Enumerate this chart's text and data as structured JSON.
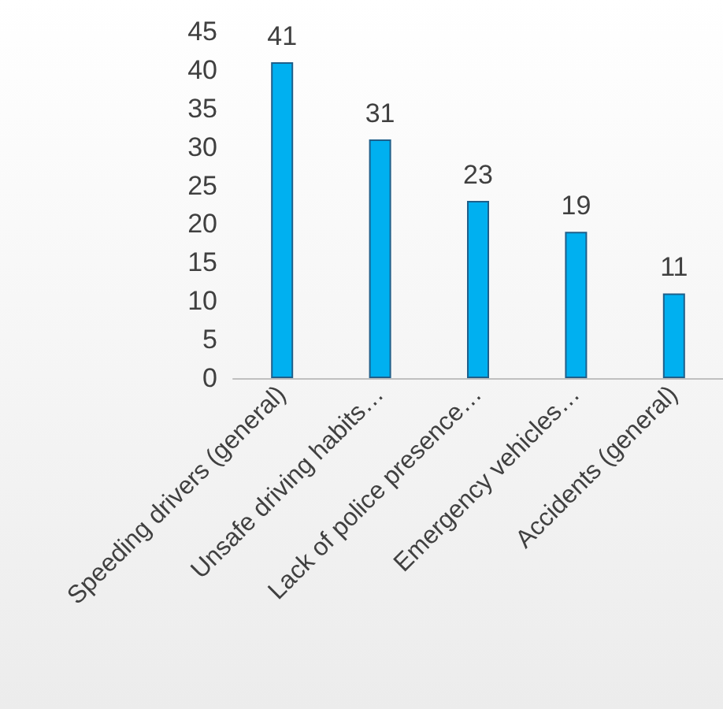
{
  "chart_data": {
    "type": "bar",
    "categories": [
      "Speeding drivers (general)",
      "Unsafe driving habits…",
      "Lack of police presence…",
      "Emergency vehicles…",
      "Accidents (general)"
    ],
    "values": [
      41,
      31,
      23,
      19,
      11
    ],
    "color": "#00b0f0",
    "ylim": [
      0,
      45
    ],
    "yticks": [
      0,
      5,
      10,
      15,
      20,
      25,
      30,
      35,
      40,
      45
    ],
    "grid": false,
    "data_labels": true
  }
}
